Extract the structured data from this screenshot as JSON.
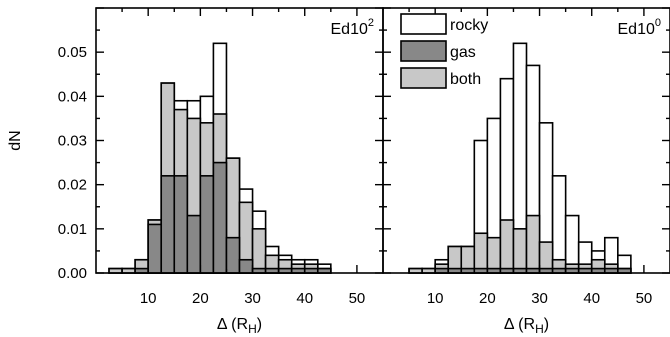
{
  "chart_data": [
    {
      "type": "bar",
      "stacking": "overlay",
      "xlabel": "Δ (R_H)",
      "xlabel_main": "Δ (R",
      "xlabel_sub": "H",
      "xlabel_close": ")",
      "ylabel": "dN",
      "xlim": [
        0,
        55
      ],
      "ylim": [
        0,
        0.06
      ],
      "xticks": [
        10,
        20,
        30,
        40,
        50
      ],
      "xtick_labels": [
        "10",
        "20",
        "30",
        "40",
        "50"
      ],
      "yticks": [
        0.0,
        0.01,
        0.02,
        0.03,
        0.04,
        0.05
      ],
      "ytick_labels": [
        "0.00",
        "0.01",
        "0.02",
        "0.03",
        "0.04",
        "0.05"
      ],
      "annotation_base": "Ed10",
      "annotation_sup": "2",
      "bin_width": 2.5,
      "bin_edges_start": 2.5,
      "series": [
        {
          "name": "rocky",
          "fill": "#ffffff",
          "values": [
            0.001,
            0.001,
            0.003,
            0.012,
            0.043,
            0.039,
            0.039,
            0.04,
            0.052,
            0.026,
            0.019,
            0.014,
            0.006,
            0.004,
            0.003,
            0.003,
            0.002
          ]
        },
        {
          "name": "both",
          "fill": "#c8c8c8",
          "values": [
            0.001,
            0.001,
            0.003,
            0.012,
            0.043,
            0.037,
            0.035,
            0.034,
            0.036,
            0.026,
            0.016,
            0.01,
            0.004,
            0.003,
            0.002,
            0.002,
            0.001
          ]
        },
        {
          "name": "gas",
          "fill": "#888888",
          "values": [
            0.0,
            0.0,
            0.001,
            0.011,
            0.022,
            0.022,
            0.013,
            0.022,
            0.025,
            0.008,
            0.003,
            0.001,
            0.001,
            0.001,
            0.001,
            0.001,
            0.001
          ]
        }
      ]
    },
    {
      "type": "bar",
      "stacking": "overlay",
      "xlabel": "Δ (R_H)",
      "xlabel_main": "Δ (R",
      "xlabel_sub": "H",
      "xlabel_close": ")",
      "xlim": [
        0,
        55
      ],
      "ylim": [
        0,
        0.06
      ],
      "xticks": [
        10,
        20,
        30,
        40,
        50
      ],
      "xtick_labels": [
        "10",
        "20",
        "30",
        "40",
        "50"
      ],
      "annotation_base": "Ed10",
      "annotation_sup": "0",
      "bin_width": 2.5,
      "bin_edges_start": 2.5,
      "series": [
        {
          "name": "rocky",
          "fill": "#ffffff",
          "values": [
            0.0,
            0.001,
            0.001,
            0.003,
            0.006,
            0.006,
            0.03,
            0.035,
            0.044,
            0.052,
            0.047,
            0.034,
            0.022,
            0.013,
            0.007,
            0.005,
            0.008,
            0.004
          ]
        },
        {
          "name": "both",
          "fill": "#c8c8c8",
          "values": [
            0.0,
            0.001,
            0.001,
            0.002,
            0.006,
            0.006,
            0.009,
            0.008,
            0.012,
            0.01,
            0.013,
            0.007,
            0.003,
            0.002,
            0.002,
            0.003,
            0.002,
            0.001
          ]
        },
        {
          "name": "gas",
          "fill": "#888888",
          "values": [
            0.0,
            0.0,
            0.0,
            0.001,
            0.001,
            0.001,
            0.001,
            0.001,
            0.001,
            0.001,
            0.001,
            0.001,
            0.001,
            0.001,
            0.001,
            0.001,
            0.001,
            0.001
          ]
        }
      ]
    }
  ],
  "legend": {
    "placement": "top-left of right panel",
    "items": [
      {
        "label": "rocky",
        "fill": "#ffffff"
      },
      {
        "label": "gas",
        "fill": "#888888"
      },
      {
        "label": "both",
        "fill": "#c8c8c8"
      }
    ]
  }
}
